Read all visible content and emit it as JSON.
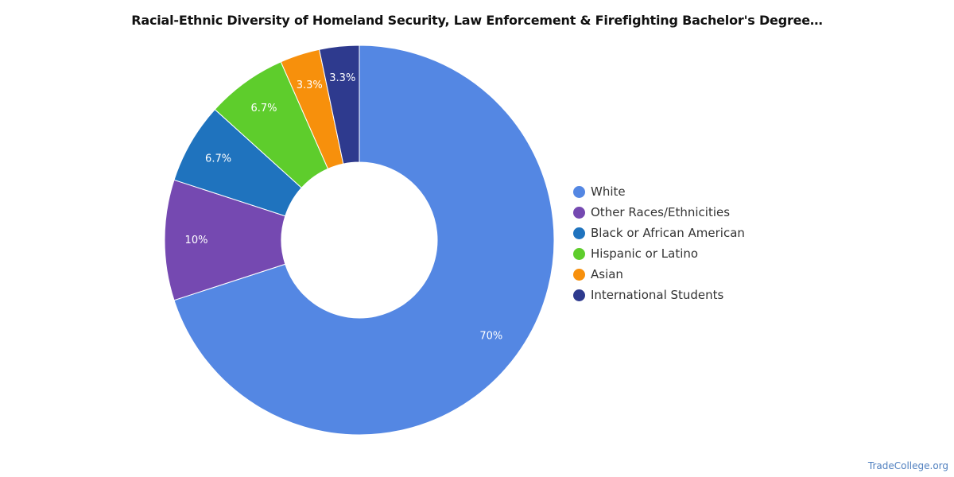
{
  "chart_data": {
    "type": "pie",
    "title": "Racial-Ethnic Diversity of Homeland Security, Law Enforcement & Firefighting Bachelor's Degree…",
    "donut": true,
    "legend_position": "right",
    "slices": [
      {
        "name": "White",
        "value": 70,
        "label": "70%",
        "color": "#5487e3"
      },
      {
        "name": "Other Races/Ethnicities",
        "value": 10,
        "label": "10%",
        "color": "#7549b1"
      },
      {
        "name": "Black or African American",
        "value": 6.7,
        "label": "6.7%",
        "color": "#1f73be"
      },
      {
        "name": "Hispanic or Latino",
        "value": 6.7,
        "label": "6.7%",
        "color": "#5ecd2c"
      },
      {
        "name": "Asian",
        "value": 3.3,
        "label": "3.3%",
        "color": "#f7900c"
      },
      {
        "name": "International Students",
        "value": 3.3,
        "label": "3.3%",
        "color": "#2e3a8e"
      }
    ]
  },
  "watermark": "TradeCollege.org"
}
